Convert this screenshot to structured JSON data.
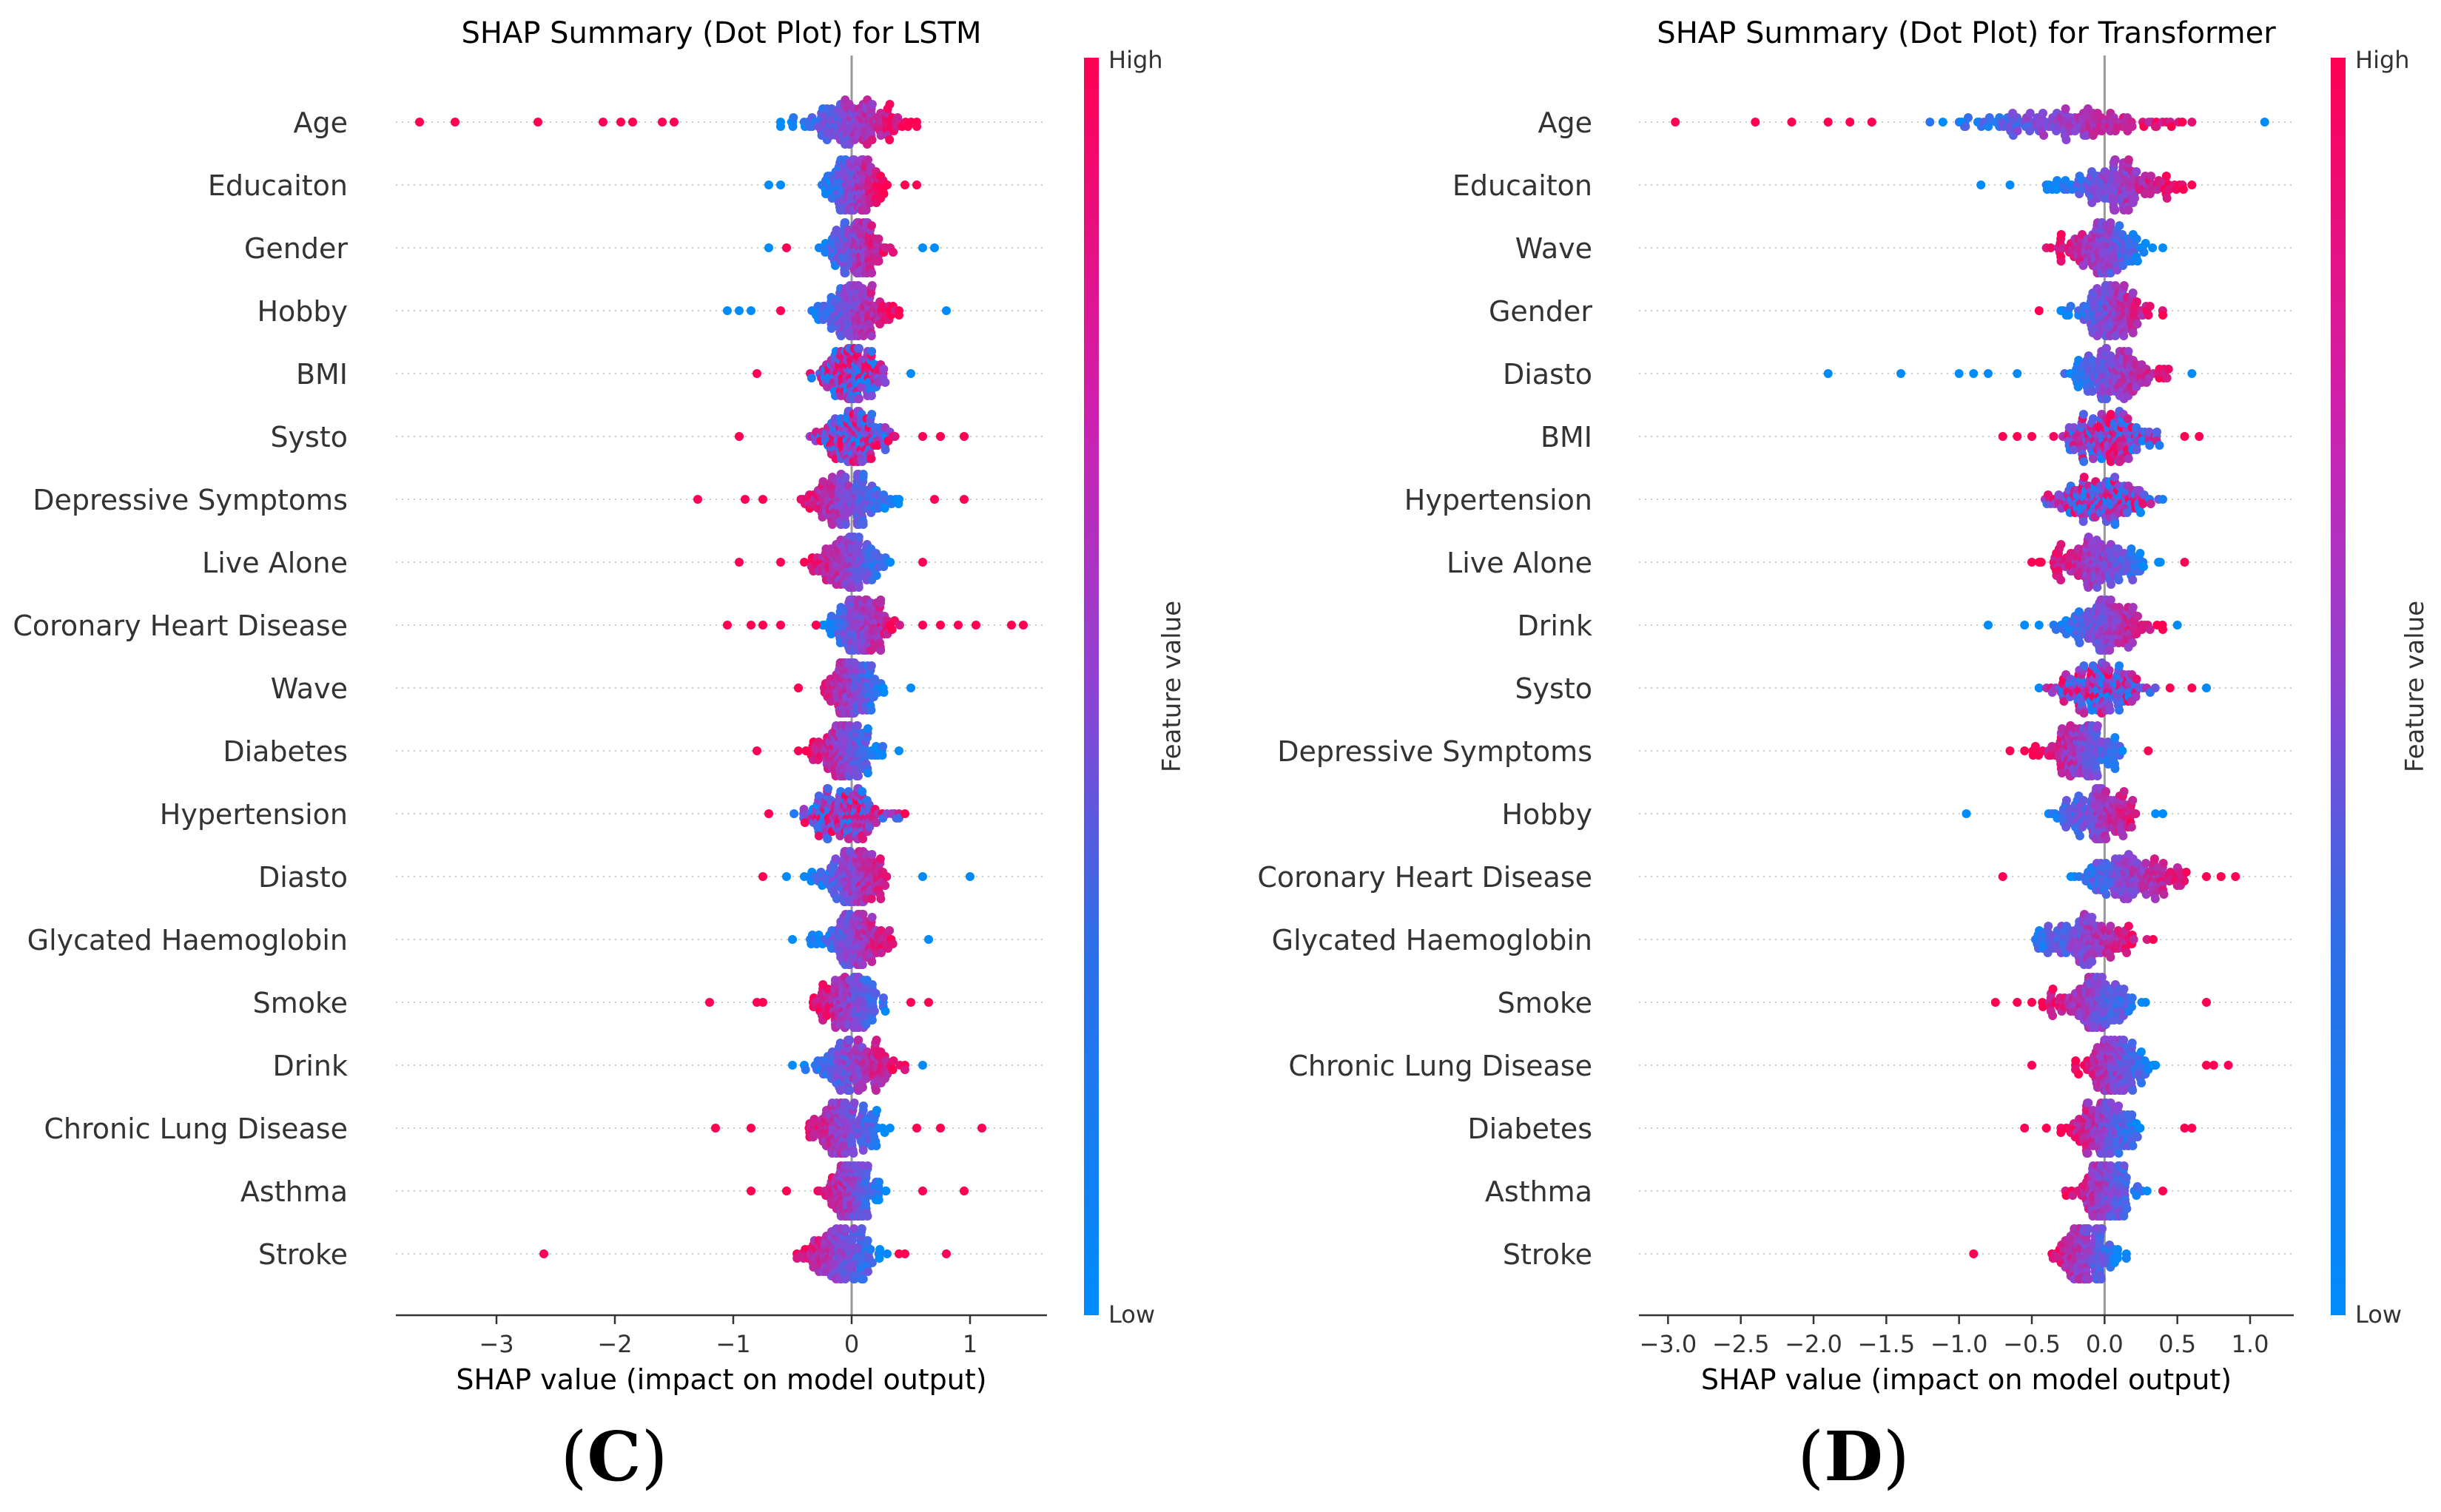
{
  "colors": {
    "high": "#ff0052",
    "low": "#008bfb",
    "mid": "#8f43d3",
    "axis": "#333333",
    "grid": "#cccccc"
  },
  "chart_data": [
    {
      "type": "scatter",
      "subtype": "shap-beeswarm",
      "panel_label": "C",
      "title": "SHAP Summary (Dot Plot) for LSTM",
      "xlabel": "SHAP value (impact on model output)",
      "xlim": [
        -3.85,
        1.65
      ],
      "xticks": [
        -3,
        -2,
        -1,
        0,
        1
      ],
      "xtick_labels": [
        "−3",
        "−2",
        "−1",
        "0",
        "1"
      ],
      "colorbar": {
        "label": "Feature value",
        "high_label": "High",
        "low_label": "Low"
      },
      "features": [
        {
          "name": "Age",
          "min": -3.65,
          "max": 0.65,
          "core": [
            -0.6,
            0.55
          ],
          "outliers_high": [
            -3.65,
            -3.35,
            -2.65,
            -2.1,
            -1.95,
            -1.85,
            -1.6,
            -1.5
          ],
          "outliers_low": [],
          "trend": "pos"
        },
        {
          "name": "Educaiton",
          "min": -0.7,
          "max": 0.55,
          "core": [
            -0.25,
            0.3
          ],
          "outliers_high": [
            0.45,
            0.55
          ],
          "outliers_low": [
            -0.7,
            -0.6
          ],
          "trend": "pos"
        },
        {
          "name": "Gender",
          "min": -0.7,
          "max": 0.7,
          "core": [
            -0.3,
            0.35
          ],
          "outliers_high": [
            -0.55
          ],
          "outliers_low": [
            -0.7,
            0.6,
            0.7
          ],
          "trend": "pos"
        },
        {
          "name": "Hobby",
          "min": -1.05,
          "max": 0.8,
          "core": [
            -0.35,
            0.4
          ],
          "outliers_high": [
            -0.6
          ],
          "outliers_low": [
            -1.05,
            -0.95,
            -0.85,
            0.8
          ],
          "trend": "pos"
        },
        {
          "name": "BMI",
          "min": -0.8,
          "max": 0.5,
          "core": [
            -0.35,
            0.35
          ],
          "outliers_high": [
            -0.8
          ],
          "outliers_low": [
            0.5
          ],
          "trend": "mix"
        },
        {
          "name": "Systo",
          "min": -0.95,
          "max": 0.95,
          "core": [
            -0.4,
            0.4
          ],
          "outliers_high": [
            -0.95,
            0.6,
            0.75,
            0.95
          ],
          "outliers_low": [],
          "trend": "mix"
        },
        {
          "name": "Depressive Symptoms",
          "min": -1.3,
          "max": 0.95,
          "core": [
            -0.5,
            0.4
          ],
          "outliers_high": [
            -1.3,
            -0.9,
            -0.75,
            0.7,
            0.95
          ],
          "outliers_low": [],
          "trend": "neg"
        },
        {
          "name": "Live Alone",
          "min": -0.95,
          "max": 0.6,
          "core": [
            -0.4,
            0.35
          ],
          "outliers_high": [
            -0.95,
            -0.6,
            0.6
          ],
          "outliers_low": [],
          "trend": "neg"
        },
        {
          "name": "Coronary Heart Disease",
          "min": -1.05,
          "max": 1.45,
          "core": [
            -0.3,
            0.45
          ],
          "outliers_high": [
            -1.05,
            -0.85,
            -0.75,
            -0.6,
            -0.3,
            0.6,
            0.75,
            0.9,
            1.05,
            1.35,
            1.45
          ],
          "outliers_low": [],
          "trend": "pos"
        },
        {
          "name": "Wave",
          "min": -0.45,
          "max": 0.5,
          "core": [
            -0.3,
            0.3
          ],
          "outliers_high": [
            -0.45
          ],
          "outliers_low": [
            0.5
          ],
          "trend": "neg"
        },
        {
          "name": "Diabetes",
          "min": -0.8,
          "max": 0.4,
          "core": [
            -0.4,
            0.3
          ],
          "outliers_high": [
            -0.8,
            -0.45
          ],
          "outliers_low": [
            0.4
          ],
          "trend": "neg"
        },
        {
          "name": "Hypertension",
          "min": -0.7,
          "max": 0.45,
          "core": [
            -0.5,
            0.4
          ],
          "outliers_high": [
            -0.7,
            0.45
          ],
          "outliers_low": [],
          "trend": "mix"
        },
        {
          "name": "Diasto",
          "min": -0.75,
          "max": 1.0,
          "core": [
            -0.4,
            0.4
          ],
          "outliers_high": [
            -0.75
          ],
          "outliers_low": [
            -0.55,
            0.6,
            1.0
          ],
          "trend": "pos"
        },
        {
          "name": "Glycated Haemoglobin",
          "min": -0.5,
          "max": 0.65,
          "core": [
            -0.35,
            0.4
          ],
          "outliers_high": [],
          "outliers_low": [
            -0.5,
            0.65
          ],
          "trend": "pos"
        },
        {
          "name": "Smoke",
          "min": -1.2,
          "max": 0.65,
          "core": [
            -0.35,
            0.35
          ],
          "outliers_high": [
            -1.2,
            -0.8,
            -0.75,
            0.5,
            0.65
          ],
          "outliers_low": [],
          "trend": "neg"
        },
        {
          "name": "Drink",
          "min": -0.5,
          "max": 0.6,
          "core": [
            -0.4,
            0.45
          ],
          "outliers_high": [],
          "outliers_low": [
            -0.5,
            0.6
          ],
          "trend": "pos"
        },
        {
          "name": "Chronic Lung Disease",
          "min": -1.15,
          "max": 1.1,
          "core": [
            -0.45,
            0.35
          ],
          "outliers_high": [
            -1.15,
            -0.85,
            0.55,
            0.75,
            1.1
          ],
          "outliers_low": [],
          "trend": "neg"
        },
        {
          "name": "Asthma",
          "min": -0.85,
          "max": 0.95,
          "core": [
            -0.3,
            0.3
          ],
          "outliers_high": [
            -0.85,
            -0.55,
            0.6,
            0.95
          ],
          "outliers_low": [],
          "trend": "neg"
        },
        {
          "name": "Stroke",
          "min": -2.6,
          "max": 0.8,
          "core": [
            -0.5,
            0.3
          ],
          "outliers_high": [
            -2.6,
            0.4,
            0.45,
            0.8
          ],
          "outliers_low": [],
          "trend": "neg"
        }
      ]
    },
    {
      "type": "scatter",
      "subtype": "shap-beeswarm",
      "panel_label": "D",
      "title": "SHAP Summary (Dot Plot) for Transformer",
      "xlabel": "SHAP value (impact on model output)",
      "xlim": [
        -3.2,
        1.3
      ],
      "xticks": [
        -3.0,
        -2.5,
        -2.0,
        -1.5,
        -1.0,
        -0.5,
        0.0,
        0.5,
        1.0
      ],
      "xtick_labels": [
        "−3.0",
        "−2.5",
        "−2.0",
        "−1.5",
        "−1.0",
        "−0.5",
        "0.0",
        "0.5",
        "1.0"
      ],
      "colorbar": {
        "label": "Feature value",
        "high_label": "High",
        "low_label": "Low"
      },
      "features": [
        {
          "name": "Age",
          "min": -2.95,
          "max": 1.1,
          "core": [
            -1.2,
            0.6
          ],
          "outliers_high": [
            -2.95,
            -2.4,
            -2.15,
            -1.9,
            -1.75,
            -1.6
          ],
          "outliers_low": [
            1.1
          ],
          "trend": "pos"
        },
        {
          "name": "Educaiton",
          "min": -0.85,
          "max": 0.6,
          "core": [
            -0.4,
            0.55
          ],
          "outliers_high": [
            0.6
          ],
          "outliers_low": [
            -0.85,
            -0.65
          ],
          "trend": "pos"
        },
        {
          "name": "Wave",
          "min": -0.4,
          "max": 0.4,
          "core": [
            -0.4,
            0.35
          ],
          "outliers_high": [],
          "outliers_low": [
            0.4
          ],
          "trend": "neg"
        },
        {
          "name": "Gender",
          "min": -0.45,
          "max": 0.4,
          "core": [
            -0.3,
            0.4
          ],
          "outliers_high": [
            -0.45
          ],
          "outliers_low": [],
          "trend": "pos"
        },
        {
          "name": "Diasto",
          "min": -1.9,
          "max": 0.6,
          "core": [
            -0.35,
            0.5
          ],
          "outliers_high": [],
          "outliers_low": [
            -1.9,
            -1.4,
            -1.0,
            -0.9,
            -0.8,
            -0.6,
            0.6
          ],
          "trend": "pos"
        },
        {
          "name": "BMI",
          "min": -0.7,
          "max": 0.65,
          "core": [
            -0.35,
            0.4
          ],
          "outliers_high": [
            -0.7,
            -0.6,
            -0.5,
            0.55,
            0.65
          ],
          "outliers_low": [],
          "trend": "mix"
        },
        {
          "name": "Hypertension",
          "min": -0.45,
          "max": 0.4,
          "core": [
            -0.45,
            0.4
          ],
          "outliers_high": [],
          "outliers_low": [],
          "trend": "mix"
        },
        {
          "name": "Live Alone",
          "min": -0.5,
          "max": 0.55,
          "core": [
            -0.45,
            0.4
          ],
          "outliers_high": [
            -0.5,
            0.55
          ],
          "outliers_low": [],
          "trend": "neg"
        },
        {
          "name": "Drink",
          "min": -0.8,
          "max": 0.5,
          "core": [
            -0.35,
            0.4
          ],
          "outliers_high": [],
          "outliers_low": [
            -0.8,
            -0.55,
            -0.45,
            0.5
          ],
          "trend": "pos"
        },
        {
          "name": "Systo",
          "min": -0.45,
          "max": 0.7,
          "core": [
            -0.45,
            0.35
          ],
          "outliers_high": [
            0.45,
            0.6
          ],
          "outliers_low": [
            0.7
          ],
          "trend": "mix"
        },
        {
          "name": "Depressive Symptoms",
          "min": -0.65,
          "max": 0.3,
          "core": [
            -0.5,
            0.2
          ],
          "outliers_high": [
            -0.65,
            -0.55,
            0.3
          ],
          "outliers_low": [],
          "trend": "neg"
        },
        {
          "name": "Hobby",
          "min": -0.95,
          "max": 0.4,
          "core": [
            -0.4,
            0.3
          ],
          "outliers_high": [],
          "outliers_low": [
            -0.95,
            0.35,
            0.4
          ],
          "trend": "pos"
        },
        {
          "name": "Coronary Heart Disease",
          "min": -0.7,
          "max": 0.9,
          "core": [
            -0.3,
            0.65
          ],
          "outliers_high": [
            -0.7,
            0.7,
            0.8,
            0.9
          ],
          "outliers_low": [],
          "trend": "pos"
        },
        {
          "name": "Glycated Haemoglobin",
          "min": -0.6,
          "max": 0.35,
          "core": [
            -0.6,
            0.35
          ],
          "outliers_high": [],
          "outliers_low": [],
          "trend": "pos"
        },
        {
          "name": "Smoke",
          "min": -0.75,
          "max": 0.7,
          "core": [
            -0.45,
            0.3
          ],
          "outliers_high": [
            -0.75,
            -0.6,
            -0.5,
            0.7
          ],
          "outliers_low": [],
          "trend": "neg"
        },
        {
          "name": "Chronic Lung Disease",
          "min": -0.5,
          "max": 0.85,
          "core": [
            -0.2,
            0.35
          ],
          "outliers_high": [
            -0.5,
            0.7,
            0.75,
            0.85
          ],
          "outliers_low": [],
          "trend": "neg"
        },
        {
          "name": "Diabetes",
          "min": -0.55,
          "max": 0.6,
          "core": [
            -0.3,
            0.3
          ],
          "outliers_high": [
            -0.55,
            -0.4,
            0.55,
            0.6
          ],
          "outliers_low": [],
          "trend": "neg"
        },
        {
          "name": "Asthma",
          "min": -0.3,
          "max": 0.4,
          "core": [
            -0.3,
            0.3
          ],
          "outliers_high": [
            0.4
          ],
          "outliers_low": [],
          "trend": "neg"
        },
        {
          "name": "Stroke",
          "min": -0.9,
          "max": 0.15,
          "core": [
            -0.4,
            0.15
          ],
          "outliers_high": [
            -0.9
          ],
          "outliers_low": [],
          "trend": "neg"
        }
      ]
    }
  ]
}
